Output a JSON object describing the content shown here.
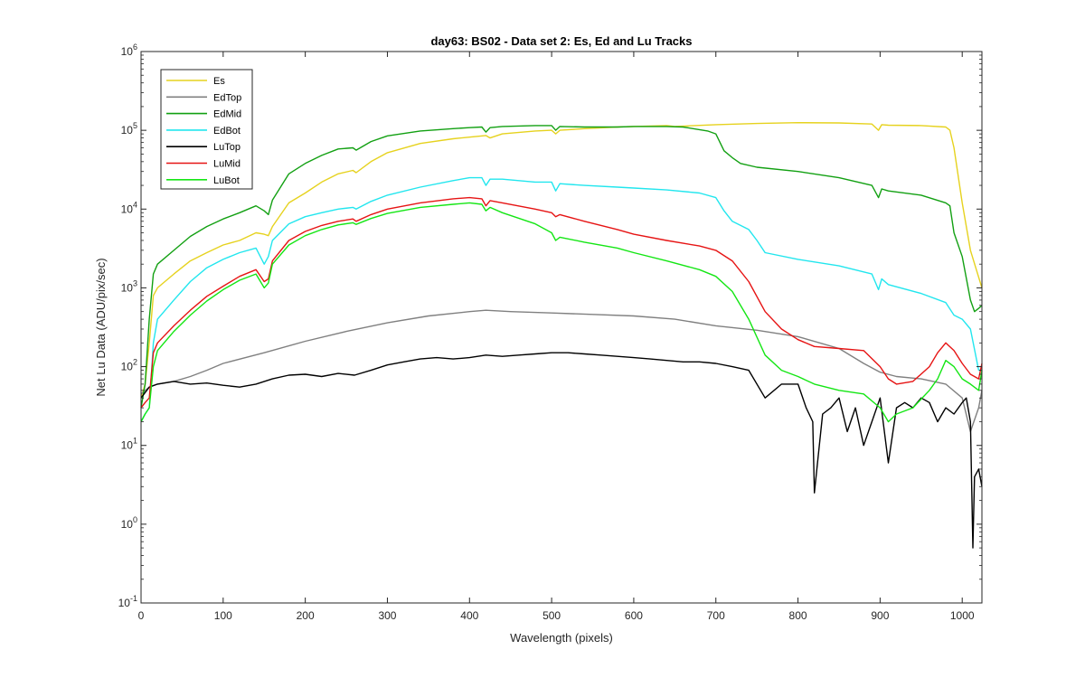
{
  "chart_data": {
    "type": "line",
    "title": "day63: BS02 - Data set 2: Es, Ed and Lu Tracks",
    "xlabel": "Wavelength (pixels)",
    "ylabel": "Net Lu Data (ADU/pix/sec)",
    "xlim": [
      0,
      1024
    ],
    "ylim": [
      0.1,
      1000000
    ],
    "yscale": "log",
    "grid": false,
    "legend_position": "top-left",
    "xticks": [
      0,
      100,
      200,
      300,
      400,
      500,
      600,
      700,
      800,
      900,
      1000
    ],
    "yticks": [
      {
        "value": 0.1,
        "base": "10",
        "exp": "-1"
      },
      {
        "value": 1,
        "base": "10",
        "exp": "0"
      },
      {
        "value": 10,
        "base": "10",
        "exp": "1"
      },
      {
        "value": 100,
        "base": "10",
        "exp": "2"
      },
      {
        "value": 1000,
        "base": "10",
        "exp": "3"
      },
      {
        "value": 10000,
        "base": "10",
        "exp": "4"
      },
      {
        "value": 100000,
        "base": "10",
        "exp": "5"
      },
      {
        "value": 1000000,
        "base": "10",
        "exp": "6"
      }
    ],
    "series": [
      {
        "name": "Es",
        "color": "#e6d21e",
        "x": [
          0,
          5,
          10,
          15,
          20,
          40,
          60,
          80,
          100,
          120,
          140,
          150,
          155,
          160,
          180,
          200,
          220,
          240,
          258,
          262,
          280,
          300,
          340,
          380,
          400,
          420,
          425,
          440,
          480,
          500,
          505,
          510,
          540,
          580,
          600,
          640,
          650,
          700,
          750,
          800,
          850,
          890,
          898,
          902,
          910,
          950,
          980,
          985,
          990,
          1000,
          1010,
          1024
        ],
        "y": [
          40,
          60,
          200,
          800,
          1000,
          1500,
          2200,
          2800,
          3500,
          4000,
          5000,
          4800,
          4600,
          6000,
          12000,
          16000,
          22000,
          28000,
          31000,
          29000,
          40000,
          52000,
          68000,
          78000,
          82000,
          86000,
          80000,
          90000,
          98000,
          100000,
          90000,
          100000,
          105000,
          110000,
          112000,
          115000,
          112000,
          118000,
          122000,
          125000,
          124000,
          120000,
          100000,
          118000,
          116000,
          115000,
          110000,
          100000,
          60000,
          12000,
          3000,
          1000
        ]
      },
      {
        "name": "EdTop",
        "color": "#808080",
        "x": [
          0,
          10,
          20,
          40,
          60,
          80,
          100,
          150,
          200,
          250,
          300,
          350,
          400,
          420,
          450,
          500,
          550,
          600,
          650,
          700,
          750,
          800,
          850,
          880,
          900,
          920,
          950,
          980,
          1000,
          1010,
          1020,
          1024
        ],
        "y": [
          45,
          55,
          60,
          65,
          75,
          90,
          110,
          150,
          210,
          280,
          360,
          440,
          500,
          520,
          500,
          480,
          460,
          440,
          400,
          330,
          290,
          240,
          170,
          110,
          85,
          75,
          70,
          60,
          40,
          15,
          30,
          50
        ]
      },
      {
        "name": "EdMid",
        "color": "#12a012",
        "x": [
          0,
          5,
          10,
          15,
          20,
          40,
          60,
          80,
          100,
          120,
          140,
          150,
          155,
          160,
          180,
          200,
          220,
          240,
          258,
          262,
          280,
          300,
          340,
          380,
          400,
          415,
          420,
          425,
          440,
          480,
          500,
          505,
          510,
          540,
          580,
          600,
          640,
          660,
          690,
          700,
          710,
          720,
          730,
          750,
          800,
          850,
          890,
          898,
          902,
          910,
          950,
          980,
          985,
          990,
          1000,
          1010,
          1015,
          1020,
          1024
        ],
        "y": [
          30,
          60,
          400,
          1500,
          2000,
          3000,
          4500,
          6000,
          7500,
          9000,
          11000,
          9500,
          8500,
          13000,
          28000,
          38000,
          48000,
          58000,
          60000,
          56000,
          72000,
          85000,
          98000,
          105000,
          108000,
          110000,
          95000,
          108000,
          112000,
          115000,
          115000,
          100000,
          112000,
          110000,
          110000,
          112000,
          112000,
          110000,
          98000,
          90000,
          55000,
          45000,
          38000,
          34000,
          30000,
          25000,
          20000,
          14000,
          18000,
          17000,
          15000,
          12000,
          11000,
          5000,
          2500,
          700,
          500,
          550,
          600
        ]
      },
      {
        "name": "EdBot",
        "color": "#22e6ee",
        "x": [
          0,
          5,
          10,
          15,
          20,
          40,
          60,
          80,
          100,
          120,
          140,
          150,
          155,
          160,
          180,
          200,
          220,
          240,
          258,
          262,
          280,
          300,
          340,
          380,
          400,
          415,
          420,
          425,
          440,
          480,
          500,
          505,
          510,
          540,
          580,
          600,
          640,
          680,
          700,
          710,
          720,
          740,
          750,
          760,
          800,
          850,
          890,
          898,
          902,
          910,
          950,
          980,
          990,
          1000,
          1010,
          1020,
          1024
        ],
        "y": [
          20,
          25,
          30,
          200,
          400,
          700,
          1200,
          1800,
          2300,
          2800,
          3200,
          2000,
          2500,
          4000,
          6500,
          8000,
          9000,
          10000,
          10500,
          10000,
          12500,
          15000,
          19000,
          23000,
          25000,
          25000,
          20000,
          24000,
          24000,
          22000,
          22000,
          17000,
          21000,
          20000,
          19000,
          18500,
          17500,
          16000,
          14000,
          9500,
          7000,
          5500,
          4000,
          2800,
          2300,
          1900,
          1500,
          950,
          1300,
          1100,
          850,
          650,
          450,
          400,
          300,
          90,
          90
        ]
      },
      {
        "name": "LuTop",
        "color": "#000000",
        "x": [
          0,
          10,
          20,
          40,
          60,
          80,
          100,
          120,
          140,
          160,
          180,
          200,
          220,
          240,
          260,
          280,
          300,
          320,
          340,
          360,
          380,
          400,
          420,
          440,
          460,
          480,
          500,
          520,
          540,
          560,
          580,
          600,
          620,
          640,
          660,
          680,
          700,
          720,
          740,
          760,
          780,
          800,
          810,
          818,
          820,
          830,
          840,
          850,
          860,
          870,
          880,
          890,
          900,
          910,
          920,
          930,
          940,
          950,
          960,
          970,
          980,
          990,
          1000,
          1005,
          1010,
          1013,
          1015,
          1020,
          1024
        ],
        "y": [
          40,
          55,
          60,
          65,
          60,
          62,
          58,
          55,
          60,
          70,
          78,
          80,
          75,
          82,
          78,
          90,
          105,
          115,
          125,
          130,
          125,
          130,
          140,
          135,
          140,
          145,
          150,
          150,
          145,
          140,
          135,
          130,
          125,
          120,
          115,
          115,
          110,
          100,
          90,
          40,
          60,
          60,
          30,
          20,
          2.5,
          25,
          30,
          40,
          15,
          30,
          10,
          20,
          40,
          6,
          30,
          35,
          30,
          40,
          35,
          20,
          30,
          25,
          35,
          40,
          20,
          0.5,
          4,
          5,
          3
        ]
      },
      {
        "name": "LuMid",
        "color": "#e61414",
        "x": [
          0,
          5,
          10,
          15,
          20,
          40,
          60,
          80,
          100,
          120,
          140,
          150,
          155,
          160,
          180,
          200,
          220,
          240,
          258,
          262,
          280,
          300,
          340,
          380,
          400,
          415,
          420,
          425,
          440,
          480,
          500,
          505,
          510,
          540,
          580,
          600,
          640,
          680,
          700,
          720,
          740,
          760,
          780,
          800,
          820,
          850,
          880,
          900,
          910,
          920,
          940,
          960,
          970,
          980,
          990,
          1000,
          1010,
          1020,
          1024
        ],
        "y": [
          30,
          35,
          40,
          150,
          200,
          330,
          520,
          780,
          1050,
          1400,
          1700,
          1200,
          1300,
          2200,
          4000,
          5200,
          6200,
          7000,
          7500,
          7000,
          8500,
          10000,
          12000,
          13500,
          14000,
          13500,
          11000,
          12800,
          12000,
          10000,
          9000,
          8000,
          8500,
          7000,
          5500,
          4800,
          4000,
          3400,
          3000,
          2200,
          1200,
          500,
          300,
          220,
          180,
          170,
          160,
          100,
          70,
          60,
          65,
          100,
          150,
          200,
          160,
          110,
          80,
          70,
          110
        ]
      },
      {
        "name": "LuBot",
        "color": "#14e614",
        "x": [
          0,
          5,
          10,
          15,
          20,
          40,
          60,
          80,
          100,
          120,
          140,
          150,
          155,
          160,
          180,
          200,
          220,
          240,
          258,
          262,
          280,
          300,
          340,
          380,
          400,
          415,
          420,
          425,
          440,
          480,
          500,
          505,
          510,
          540,
          580,
          600,
          640,
          680,
          700,
          720,
          740,
          760,
          780,
          800,
          820,
          850,
          880,
          900,
          910,
          920,
          940,
          960,
          970,
          980,
          990,
          1000,
          1010,
          1020,
          1024
        ],
        "y": [
          20,
          25,
          30,
          100,
          160,
          280,
          450,
          680,
          950,
          1250,
          1500,
          1000,
          1150,
          2000,
          3500,
          4600,
          5500,
          6300,
          6700,
          6400,
          7600,
          8800,
          10500,
          11500,
          12000,
          11500,
          9500,
          10500,
          9000,
          6500,
          5000,
          4000,
          4400,
          3800,
          3200,
          2800,
          2200,
          1700,
          1400,
          900,
          400,
          140,
          90,
          75,
          60,
          50,
          45,
          30,
          20,
          25,
          30,
          50,
          70,
          120,
          100,
          70,
          60,
          50,
          90
        ]
      }
    ]
  }
}
